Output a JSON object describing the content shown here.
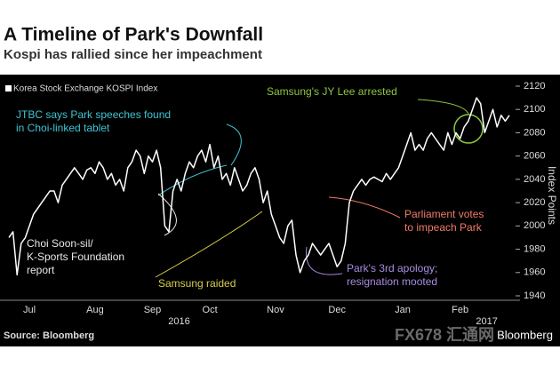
{
  "chart_data": {
    "type": "line",
    "title": "A Timeline of Park's Downfall",
    "subtitle": "Kospi has rallied since her impeachment",
    "y_label": "Index Points",
    "source": "Source: Bloomberg",
    "brand": "Bloomberg",
    "watermark": "FX678 汇通网",
    "years": [
      {
        "label": "2016",
        "category": "Sep"
      },
      {
        "label": "2017",
        "category": "Feb"
      }
    ],
    "categories": [
      null,
      null,
      null,
      null,
      null,
      "Jul",
      null,
      null,
      null,
      null,
      null,
      null,
      null,
      null,
      null,
      null,
      null,
      null,
      null,
      null,
      null,
      "Aug",
      null,
      null,
      null,
      null,
      null,
      null,
      null,
      null,
      null,
      null,
      null,
      null,
      null,
      "Sep",
      null,
      null,
      null,
      null,
      null,
      null,
      null,
      null,
      null,
      null,
      null,
      null,
      null,
      "Oct",
      null,
      null,
      null,
      null,
      null,
      null,
      null,
      null,
      null,
      null,
      null,
      null,
      null,
      null,
      null,
      "Nov",
      null,
      null,
      null,
      null,
      null,
      null,
      null,
      null,
      null,
      null,
      null,
      null,
      null,
      null,
      "Dec",
      null,
      null,
      null,
      null,
      null,
      null,
      null,
      null,
      null,
      null,
      null,
      null,
      null,
      null,
      null,
      "Jan",
      null,
      null,
      null,
      null,
      null,
      null,
      null,
      null,
      null,
      null,
      null,
      null,
      null,
      "Feb",
      null,
      null,
      null,
      null,
      null,
      null,
      null,
      null,
      null,
      null,
      null,
      null
    ],
    "series": [
      {
        "name": "Korea Stock Exchange KOSPI Index",
        "color": "#ffffff",
        "values": [
          1990,
          1995,
          1958,
          1985,
          1990,
          2000,
          2010,
          2015,
          2020,
          2025,
          2030,
          2030,
          2020,
          2035,
          2040,
          2045,
          2050,
          2045,
          2040,
          2048,
          2050,
          2045,
          2055,
          2050,
          2040,
          2045,
          2035,
          2040,
          2030,
          2050,
          2055,
          2065,
          2060,
          2045,
          2060,
          2055,
          2065,
          2050,
          2000,
          1995,
          2030,
          2040,
          2030,
          2045,
          2055,
          2050,
          2060,
          2065,
          2055,
          2070,
          2050,
          2060,
          2040,
          2045,
          2035,
          2050,
          2040,
          2030,
          2035,
          2045,
          2050,
          2040,
          2020,
          2030,
          2010,
          2000,
          1990,
          1985,
          2000,
          2005,
          1975,
          1960,
          1970,
          1975,
          1985,
          1980,
          1975,
          1980,
          1985,
          1975,
          1965,
          1970,
          1985,
          2020,
          2030,
          2035,
          2040,
          2035,
          2040,
          2042,
          2040,
          2038,
          2045,
          2040,
          2045,
          2050,
          2060,
          2070,
          2080,
          2065,
          2070,
          2065,
          2075,
          2080,
          2075,
          2070,
          2065,
          2080,
          2070,
          2080,
          2075,
          2085,
          2090,
          2100,
          2110,
          2105,
          2080,
          2090,
          2100,
          2085,
          2095,
          2090,
          2095
        ]
      }
    ],
    "ylim": [
      1940,
      2120
    ],
    "yticks": [
      1940,
      1960,
      1980,
      2000,
      2020,
      2040,
      2060,
      2080,
      2100,
      2120
    ],
    "grid": false,
    "annotations": [
      {
        "lines": [
          "JTBC says Park speeches found",
          "in Choi-linked tablet"
        ],
        "color": "#3fc4d4"
      },
      {
        "lines": [
          "Samsung's JY Lee arrested"
        ],
        "color": "#8dc63f"
      },
      {
        "lines": [
          "Choi Soon-sil/",
          "K-Sports Foundation",
          "report"
        ],
        "color": "#e8e8e8"
      },
      {
        "lines": [
          "Samsung raided"
        ],
        "color": "#d8cc4c"
      },
      {
        "lines": [
          "Parliament votes",
          "to impeach Park"
        ],
        "color": "#f07b6b"
      },
      {
        "lines": [
          "Park's 3rd apology;",
          "resignation mooted"
        ],
        "color": "#a98be0"
      }
    ]
  }
}
